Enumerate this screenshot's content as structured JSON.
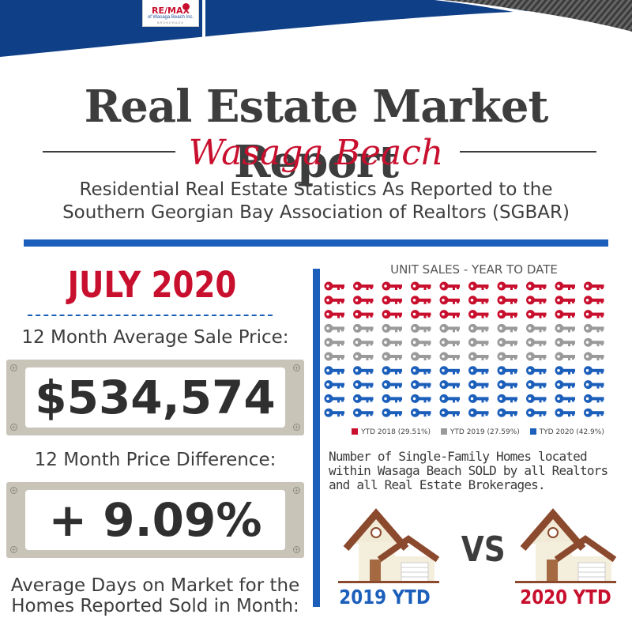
{
  "brand": {
    "logo_text": "RE/MAX",
    "logo_subtitle": "of Wasaga Beach Inc.",
    "logo_tag": "BROKERAGE",
    "colors": {
      "red": "#c8102e",
      "blue": "#1c5fbb",
      "navy": "#0f3f87",
      "gray": "#9a9a9a"
    }
  },
  "header": {
    "title": "Real Estate Market Report",
    "location": "Wasaga Beach",
    "subtitle_line1": "Residential Real Estate Statistics As Reported to the",
    "subtitle_line2": "Southern Georgian Bay Association of Realtors (SGBAR)"
  },
  "left_panel": {
    "month": "JULY 2020",
    "avg_price_label": "12 Month Average Sale Price:",
    "avg_price_value": "$534,574",
    "price_diff_label": "12 Month Price Difference:",
    "price_diff_value": "+ 9.09%",
    "days_label_line1": "Average Days on Market for the",
    "days_label_line2": "Homes Reported Sold in Month:"
  },
  "right_panel": {
    "unit_sales_title": "UNIT SALES - YEAR TO DATE",
    "key_icon": "key-icon",
    "icon_grid": {
      "columns": 10,
      "rows": 10,
      "rows_by_color": [
        "red",
        "red",
        "red",
        "gray",
        "gray",
        "gray",
        "blue",
        "blue",
        "blue",
        "blue"
      ]
    },
    "legend": [
      {
        "label": "YTD 2018 (29.51%)",
        "color": "#c8102e",
        "share": 29.51
      },
      {
        "label": "YTD 2019 (27.59%)",
        "color": "#9a9a9a",
        "share": 27.59
      },
      {
        "label": "TYD 2020 (42.9%)",
        "color": "#1c5fbb",
        "share": 42.9
      }
    ],
    "description": "Number of Single-Family Homes located within Wasaga Beach SOLD by all Realtors and all Real Estate Brokerages.",
    "house_icon": "house-icon",
    "vs_label": "VS",
    "ytd_2019_label": "2019 YTD",
    "ytd_2020_label": "2020 YTD"
  }
}
